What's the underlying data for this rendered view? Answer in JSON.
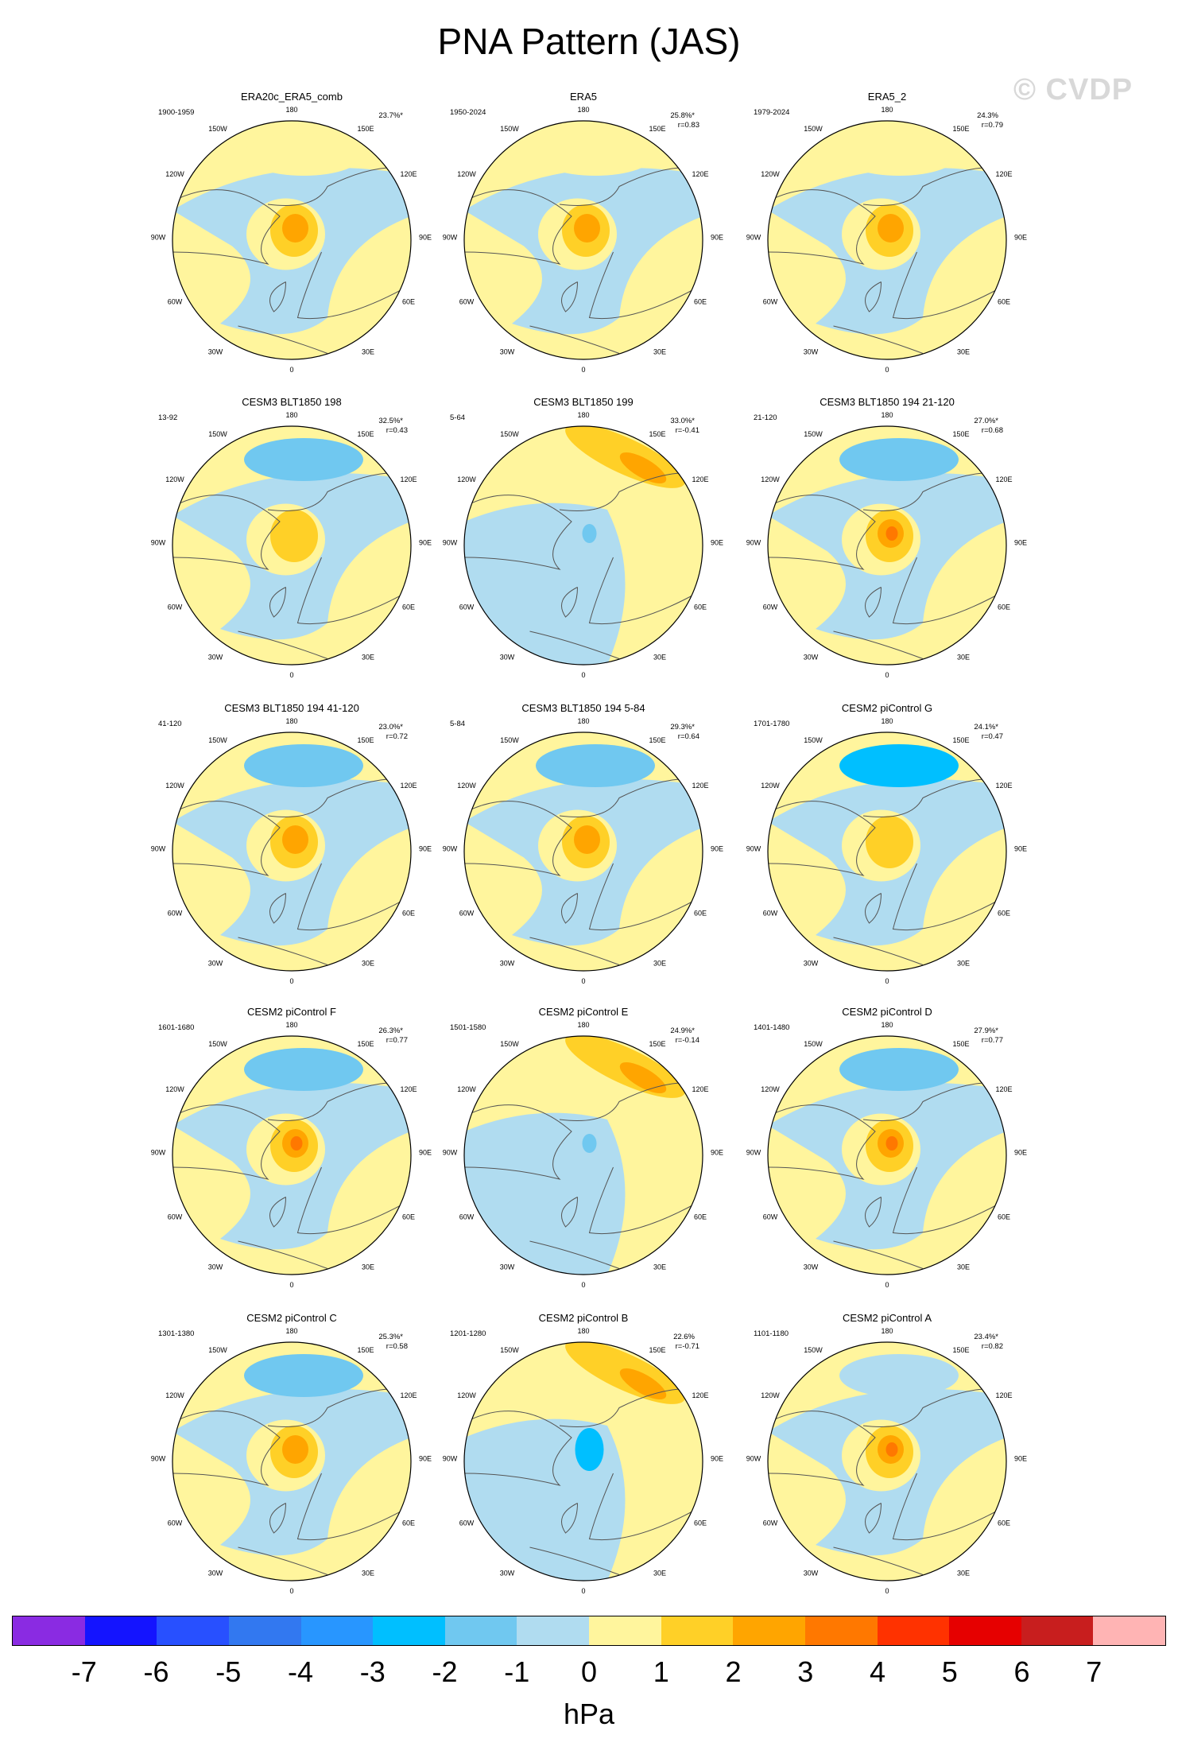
{
  "figure": {
    "title": "PNA Pattern (JAS)",
    "watermark": "© CVDP"
  },
  "axis_labels": {
    "top": "180",
    "bottom": "0",
    "upper_left": "150W",
    "upper_right": "150E",
    "mid_upper_left": "120W",
    "mid_upper_right": "120E",
    "left": "90W",
    "right": "90E",
    "mid_lower_left": "60W",
    "mid_lower_right": "60E",
    "lower_left": "30W",
    "lower_right": "30E"
  },
  "panels": [
    {
      "title": "ERA20c_ERA5_comb",
      "years": "1900-1959",
      "pct": "23.7%*",
      "r": "",
      "center": "pos",
      "ring": "mixed",
      "lowAmp": 1,
      "highAmp": 2
    },
    {
      "title": "ERA5",
      "years": "1950-2024",
      "pct": "25.8%*",
      "r": "r=0.83",
      "center": "pos",
      "ring": "mixed",
      "lowAmp": 1,
      "highAmp": 2
    },
    {
      "title": "ERA5_2",
      "years": "1979-2024",
      "pct": "24.3%",
      "r": "r=0.79",
      "center": "pos",
      "ring": "mixed",
      "lowAmp": 1,
      "highAmp": 2
    },
    {
      "title": "CESM3 BLT1850 198",
      "years": "13-92",
      "pct": "32.5%*",
      "r": "r=0.43",
      "center": "pos",
      "ring": "pos",
      "lowAmp": -2,
      "highAmp": 1
    },
    {
      "title": "CESM3 BLT1850 199",
      "years": "5-64",
      "pct": "33.0%*",
      "r": "r=-0.41",
      "center": "neg",
      "ring": "neg",
      "lowAmp": 2,
      "highAmp": -1
    },
    {
      "title": "CESM3 BLT1850 194 21-120",
      "years": "21-120",
      "pct": "27.0%*",
      "r": "r=0.68",
      "center": "pos",
      "ring": "pos",
      "lowAmp": -2,
      "highAmp": 3
    },
    {
      "title": "CESM3 BLT1850 194 41-120",
      "years": "41-120",
      "pct": "23.0%*",
      "r": "r=0.72",
      "center": "pos",
      "ring": "pos",
      "lowAmp": -2,
      "highAmp": 2
    },
    {
      "title": "CESM3 BLT1850 194 5-84",
      "years": "5-84",
      "pct": "29.3%*",
      "r": "r=0.64",
      "center": "pos",
      "ring": "pos",
      "lowAmp": -2,
      "highAmp": 2
    },
    {
      "title": "CESM2 piControl G",
      "years": "1701-1780",
      "pct": "24.1%*",
      "r": "r=0.47",
      "center": "pos",
      "ring": "pos",
      "lowAmp": -3,
      "highAmp": 1
    },
    {
      "title": "CESM2 piControl F",
      "years": "1601-1680",
      "pct": "26.3%*",
      "r": "r=0.77",
      "center": "pos",
      "ring": "pos",
      "lowAmp": -2,
      "highAmp": 3
    },
    {
      "title": "CESM2 piControl E",
      "years": "1501-1580",
      "pct": "24.9%*",
      "r": "r=-0.14",
      "center": "neg",
      "ring": "neg",
      "lowAmp": 2,
      "highAmp": -1
    },
    {
      "title": "CESM2 piControl D",
      "years": "1401-1480",
      "pct": "27.9%*",
      "r": "r=0.77",
      "center": "pos",
      "ring": "pos",
      "lowAmp": -2,
      "highAmp": 3
    },
    {
      "title": "CESM2 piControl C",
      "years": "1301-1380",
      "pct": "25.3%*",
      "r": "r=0.58",
      "center": "pos",
      "ring": "pos",
      "lowAmp": -2,
      "highAmp": 2
    },
    {
      "title": "CESM2 piControl B",
      "years": "1201-1280",
      "pct": "22.6%",
      "r": "r=-0.71",
      "center": "neg",
      "ring": "neg",
      "lowAmp": 2,
      "highAmp": -3
    },
    {
      "title": "CESM2 piControl A",
      "years": "1101-1180",
      "pct": "23.4%*",
      "r": "r=0.82",
      "center": "pos",
      "ring": "pos",
      "lowAmp": -1,
      "highAmp": 3
    }
  ],
  "colorbar": {
    "colors": [
      "#8a2be2",
      "#1414ff",
      "#2850ff",
      "#3278f0",
      "#2896ff",
      "#00bfff",
      "#70c8f0",
      "#b0dcf0",
      "#fff59d",
      "#ffd027",
      "#ffa500",
      "#ff7800",
      "#ff3200",
      "#e60000",
      "#c81e1e",
      "#ffb4b4"
    ],
    "labels": [
      "-7",
      "-6",
      "-5",
      "-4",
      "-3",
      "-2",
      "-1",
      "0",
      "1",
      "2",
      "3",
      "4",
      "5",
      "6",
      "7"
    ],
    "unit": "hPa"
  }
}
